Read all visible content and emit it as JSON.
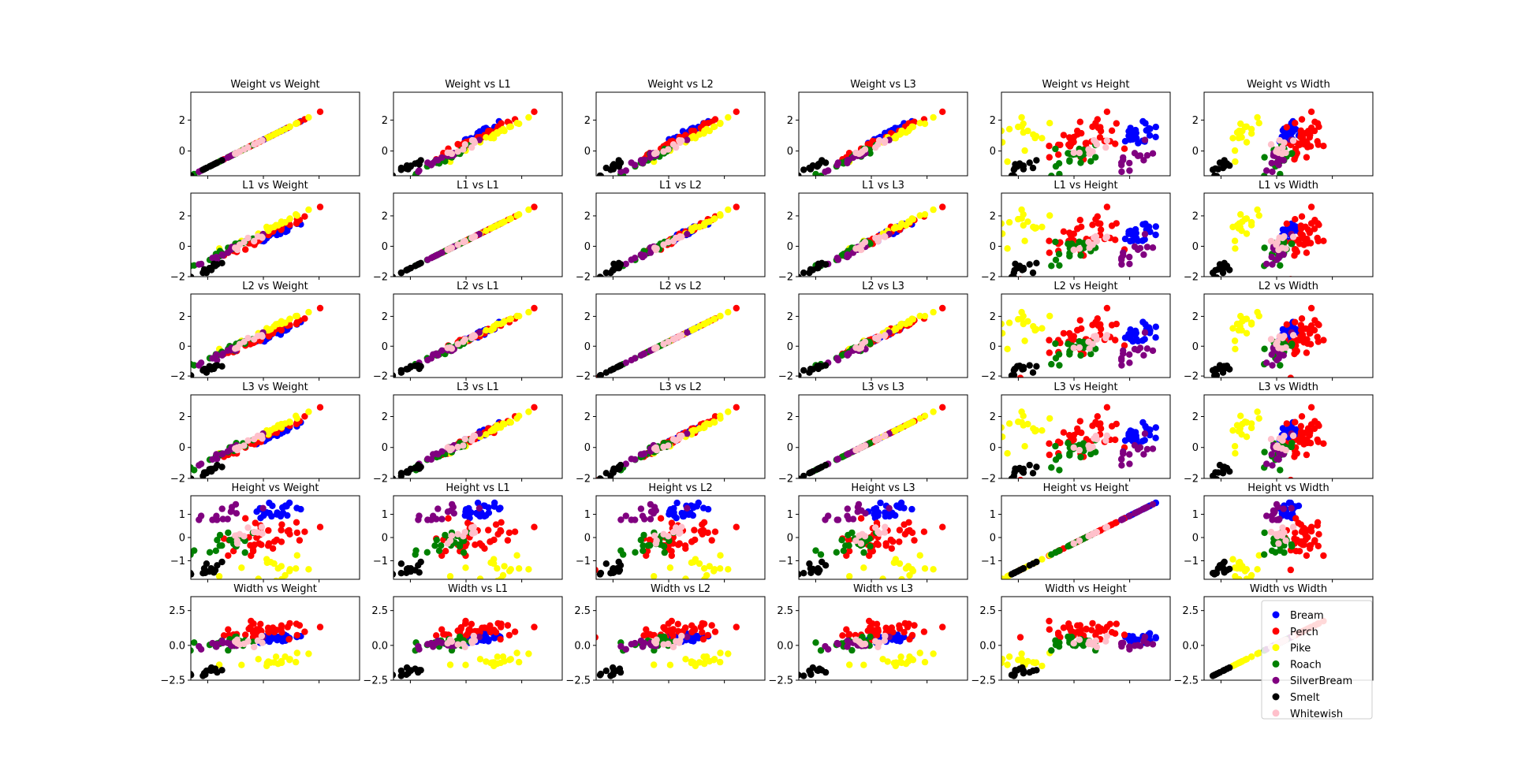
{
  "figure": {
    "variables": [
      "Weight",
      "L1",
      "L2",
      "L3",
      "Height",
      "Width"
    ],
    "legend": {
      "placement": "lower-right of last subplot",
      "entries": [
        {
          "name": "Bream",
          "color": "#0000ff"
        },
        {
          "name": "Perch",
          "color": "#ff0000"
        },
        {
          "name": "Pike",
          "color": "#ffff00"
        },
        {
          "name": "Roach",
          "color": "#008000"
        },
        {
          "name": "SilverBream",
          "color": "#800080"
        },
        {
          "name": "Smelt",
          "color": "#000000"
        },
        {
          "name": "Whitewish",
          "color": "#ffc0cb"
        }
      ]
    }
  },
  "chart_data": {
    "type": "scatter",
    "layout": "6x6 scatter-plot matrix (standardized features); subplot title is '<row variable> vs <column variable>', y = row variable, x = column variable",
    "ylim": {
      "Weight": [
        -1.6,
        3.8
      ],
      "L1": [
        -2.0,
        3.5
      ],
      "L2": [
        -2.1,
        3.5
      ],
      "L3": [
        -2.0,
        3.4
      ],
      "Height": [
        -1.8,
        1.8
      ],
      "Width": [
        -2.5,
        3.5
      ]
    },
    "yticks": {
      "Weight": [
        0,
        2
      ],
      "L1": [
        -2,
        0,
        2
      ],
      "L2": [
        -2,
        0,
        2
      ],
      "L3": [
        -2,
        0,
        2
      ],
      "Height": [
        -1,
        0,
        1
      ],
      "Width": [
        -2.5,
        0.0,
        2.5
      ]
    },
    "ytick_labels": {
      "Weight": [
        "0",
        "2"
      ],
      "L1": [
        "−2",
        "0",
        "2"
      ],
      "L2": [
        "−2",
        "0",
        "2"
      ],
      "L3": [
        "−2",
        "0",
        "2"
      ],
      "Height": [
        "−1",
        "0",
        "1"
      ],
      "Width": [
        "−2.5",
        "0.0",
        "2.5"
      ]
    },
    "x_ticks_labeled": false,
    "species_centroids": {
      "Bream": {
        "Weight": 1.2,
        "L1": 0.9,
        "L2": 0.9,
        "L3": 0.9,
        "Height": 1.1,
        "Width": 0.6
      },
      "Perch": {
        "Weight": 0.6,
        "L1": 0.5,
        "L2": 0.5,
        "L3": 0.5,
        "Height": 0.0,
        "Width": 1.0
      },
      "Pike": {
        "Weight": 1.3,
        "L1": 1.6,
        "L2": 1.6,
        "L3": 1.5,
        "Height": -1.4,
        "Width": -1.1
      },
      "Roach": {
        "Weight": -0.5,
        "L1": -0.3,
        "L2": -0.3,
        "L3": -0.3,
        "Height": -0.3,
        "Width": 0.2
      },
      "SilverBream": {
        "Weight": -0.7,
        "L1": -0.6,
        "L2": -0.6,
        "L3": -0.5,
        "Height": 0.9,
        "Width": 0.0
      },
      "Smelt": {
        "Weight": -1.1,
        "L1": -1.6,
        "L2": -1.6,
        "L3": -1.6,
        "Height": -1.4,
        "Width": -1.9
      },
      "Whitewish": {
        "Weight": 0.3,
        "L1": 0.4,
        "L2": 0.4,
        "L3": 0.4,
        "Height": 0.2,
        "Width": 0.3
      }
    }
  }
}
